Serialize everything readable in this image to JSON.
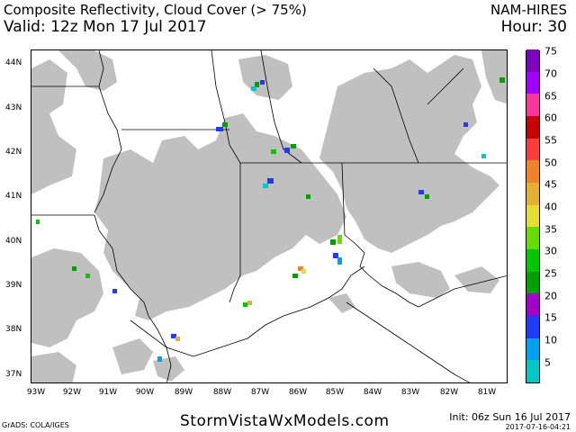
{
  "header": {
    "title": "Composite Reflectivity, Cloud Cover (> 75%)",
    "valid": "Valid: 12z Mon 17 Jul 2017",
    "model": "NAM-HIRES",
    "hour": "Hour: 30"
  },
  "map": {
    "lat_labels": [
      "44N",
      "43N",
      "42N",
      "41N",
      "40N",
      "39N",
      "38N",
      "37N"
    ],
    "lon_labels": [
      "93W",
      "92W",
      "91W",
      "90W",
      "89W",
      "88W",
      "87W",
      "86W",
      "85W",
      "84W",
      "83W",
      "82W",
      "81W"
    ],
    "cloud_color": "#c0c0c0",
    "boundary_color": "#000000"
  },
  "legend": {
    "values": [
      "5",
      "10",
      "15",
      "20",
      "25",
      "30",
      "35",
      "40",
      "45",
      "50",
      "55",
      "60",
      "65",
      "70",
      "75"
    ],
    "colors": [
      "#00c8c8",
      "#00a0f0",
      "#1e3cff",
      "#a000c8",
      "#00a000",
      "#00c800",
      "#66dc00",
      "#e6dc32",
      "#e6af2d",
      "#f08228",
      "#fa3c3c",
      "#c80000",
      "#ff3399",
      "#a000ff",
      "#8000c0"
    ]
  },
  "footer": {
    "site": "StormVistaWxModels.com",
    "grads": "GrADS: COLA/IGES",
    "init": "Init: 06z Sun 16 Jul 2017",
    "stamp": "2017-07-16-04:21"
  }
}
